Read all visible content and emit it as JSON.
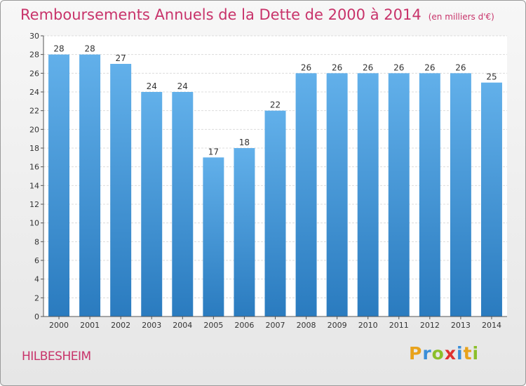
{
  "header": {
    "title": "Remboursements Annuels de la Dette de 2000 à 2014",
    "unit": "(en milliers d'€)"
  },
  "footer": {
    "city": "HILBESHEIM",
    "logo_letters": [
      "P",
      "r",
      "o",
      "x",
      "i",
      "t",
      "i"
    ]
  },
  "colors": {
    "title": "#c8336a",
    "bar_top": "#62b0ea",
    "bar_bottom": "#2a7bbf",
    "grid": "#dcdcdc"
  },
  "chart_data": {
    "type": "bar",
    "title": "Remboursements Annuels de la Dette de 2000 à 2014",
    "xlabel": "",
    "ylabel": "",
    "ylim": [
      0,
      30
    ],
    "ystep": 2,
    "grid": true,
    "categories": [
      "2000",
      "2001",
      "2002",
      "2003",
      "2004",
      "2005",
      "2006",
      "2007",
      "2008",
      "2009",
      "2010",
      "2011",
      "2012",
      "2013",
      "2014"
    ],
    "values": [
      28,
      28,
      27,
      24,
      24,
      17,
      18,
      22,
      26,
      26,
      26,
      26,
      26,
      26,
      25
    ]
  }
}
